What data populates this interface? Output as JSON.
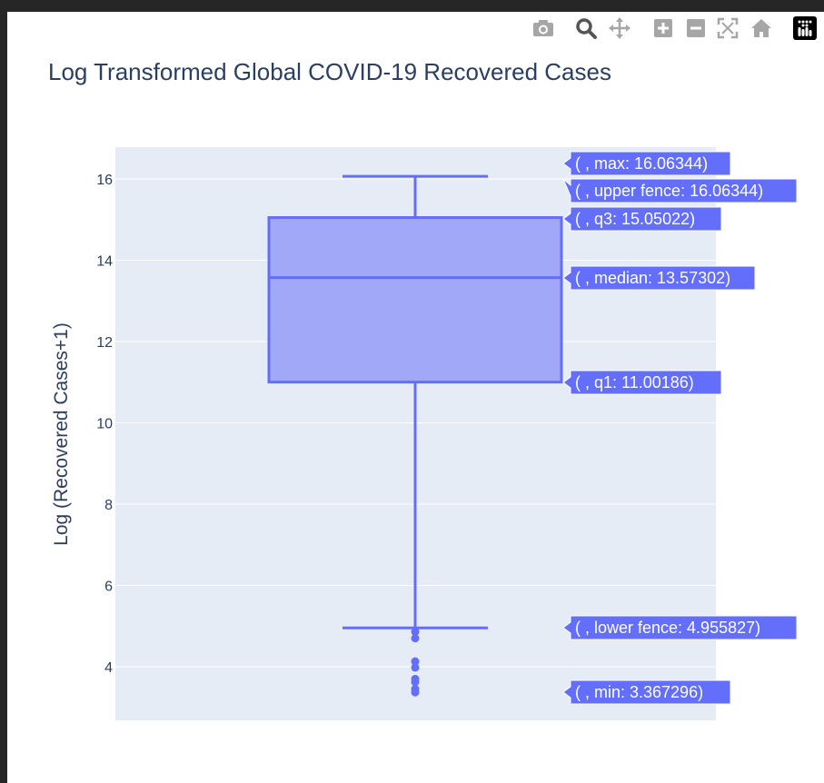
{
  "colors": {
    "accent": "#636efa",
    "box_fill": "#a1a8f7",
    "plot_bg": "#e5ecf6",
    "text": "#2a3f5f"
  },
  "toolbar": {
    "buttons": [
      {
        "name": "camera-icon",
        "title": "Download plot as a png"
      },
      {
        "name": "zoom-icon",
        "title": "Zoom"
      },
      {
        "name": "pan-icon",
        "title": "Pan"
      },
      {
        "name": "zoom-in-icon",
        "title": "Zoom in"
      },
      {
        "name": "zoom-out-icon",
        "title": "Zoom out"
      },
      {
        "name": "autoscale-icon",
        "title": "Autoscale"
      },
      {
        "name": "home-icon",
        "title": "Reset axes"
      },
      {
        "name": "plotly-logo-icon",
        "title": "Produced with Plotly"
      }
    ]
  },
  "chart_data": {
    "type": "box",
    "title": "Log Transformed Global COVID-19 Recovered Cases",
    "xlabel": "",
    "ylabel": "Log (Recovered Cases+1)",
    "ylim": [
      2.7,
      16.8
    ],
    "yticks": [
      4,
      6,
      8,
      10,
      12,
      14,
      16
    ],
    "grid": true,
    "stats": {
      "min": 3.367296,
      "lower_fence": 4.955827,
      "q1": 11.00186,
      "median": 13.57302,
      "q3": 15.05022,
      "upper_fence": 16.06344,
      "max": 16.06344
    },
    "outliers": [
      4.86,
      4.7,
      4.13,
      3.98,
      3.7,
      3.62,
      3.45,
      3.37
    ],
    "hover_labels": [
      {
        "key": "max",
        "text": "( , max: 16.06344)"
      },
      {
        "key": "upper_fence",
        "text": "( , upper fence: 16.06344)"
      },
      {
        "key": "q3",
        "text": "( , q3: 15.05022)"
      },
      {
        "key": "median",
        "text": "( , median: 13.57302)"
      },
      {
        "key": "q1",
        "text": "( , q1: 11.00186)"
      },
      {
        "key": "lower_fence",
        "text": "( , lower fence: 4.955827)"
      },
      {
        "key": "min",
        "text": "( , min: 3.367296)"
      }
    ]
  }
}
